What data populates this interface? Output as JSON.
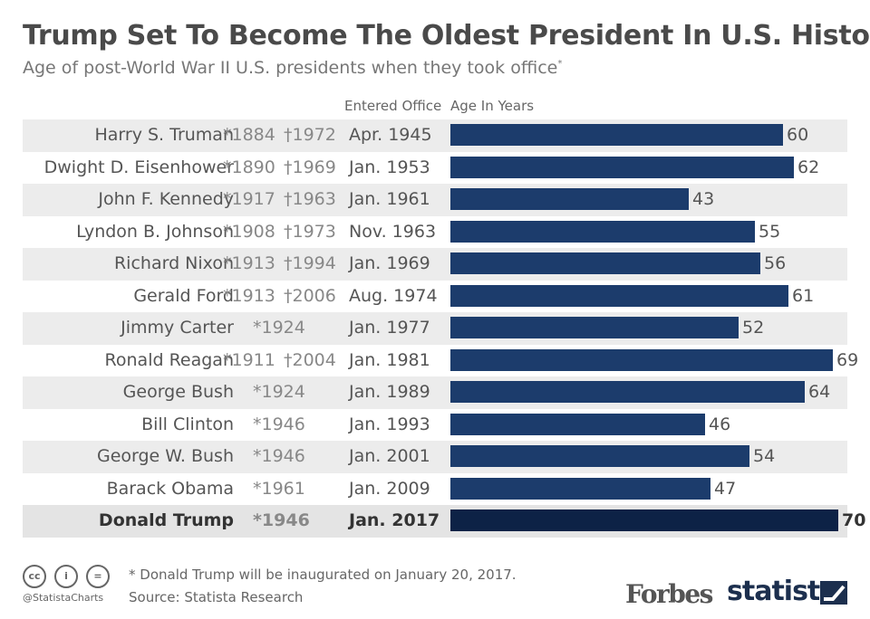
{
  "title": "Trump Set To Become The Oldest President In U.S. History",
  "subtitle": "Age of post-World War II U.S. presidents when they took office",
  "subtitle_mark": "*",
  "headers": {
    "entered": "Entered Office",
    "age": "Age In Years"
  },
  "footer": {
    "note": "* Donald Trump will be inaugurated on January 20, 2017.",
    "source": "Source: Statista Research",
    "handle": "@StatistaCharts",
    "forbes": "Forbes",
    "statista": "statista"
  },
  "colors": {
    "bar": "#1c3c6c",
    "bar_highlight": "#0d2246",
    "title": "#4a4a4a"
  },
  "chart_data": {
    "type": "bar",
    "orientation": "horizontal",
    "title": "Trump Set To Become The Oldest President In U.S. History",
    "xlabel": "Age In Years",
    "xlim": [
      0,
      70
    ],
    "rows": [
      {
        "name": "Harry S. Truman",
        "born": "*1884",
        "died": "†1972",
        "entered": "Apr. 1945",
        "age": 60
      },
      {
        "name": "Dwight D. Eisenhower",
        "born": "*1890",
        "died": "†1969",
        "entered": "Jan. 1953",
        "age": 62
      },
      {
        "name": "John F. Kennedy",
        "born": "*1917",
        "died": "†1963",
        "entered": "Jan. 1961",
        "age": 43
      },
      {
        "name": "Lyndon B. Johnson",
        "born": "*1908",
        "died": "†1973",
        "entered": "Nov. 1963",
        "age": 55
      },
      {
        "name": "Richard Nixon",
        "born": "*1913",
        "died": "†1994",
        "entered": "Jan. 1969",
        "age": 56
      },
      {
        "name": "Gerald Ford",
        "born": "*1913",
        "died": "†2006",
        "entered": "Aug. 1974",
        "age": 61
      },
      {
        "name": "Jimmy Carter",
        "born": "*1924",
        "died": "",
        "entered": "Jan. 1977",
        "age": 52
      },
      {
        "name": "Ronald Reagan",
        "born": "*1911",
        "died": "†2004",
        "entered": "Jan. 1981",
        "age": 69
      },
      {
        "name": "George Bush",
        "born": "*1924",
        "died": "",
        "entered": "Jan. 1989",
        "age": 64
      },
      {
        "name": "Bill Clinton",
        "born": "*1946",
        "died": "",
        "entered": "Jan. 1993",
        "age": 46
      },
      {
        "name": "George W. Bush",
        "born": "*1946",
        "died": "",
        "entered": "Jan. 2001",
        "age": 54
      },
      {
        "name": "Barack Obama",
        "born": "*1961",
        "died": "",
        "entered": "Jan. 2009",
        "age": 47
      },
      {
        "name": "Donald Trump",
        "born": "*1946",
        "died": "",
        "entered": "Jan. 2017",
        "age": 70,
        "highlight": true
      }
    ]
  }
}
